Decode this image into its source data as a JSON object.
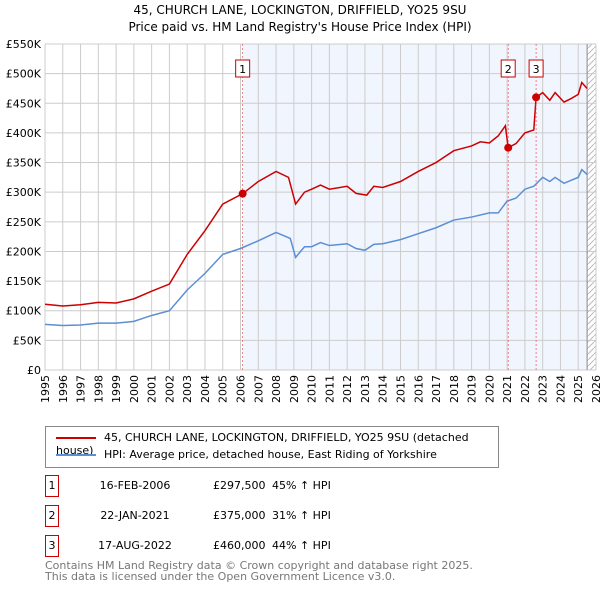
{
  "chart_data": {
    "type": "line",
    "title": "45, CHURCH LANE, LOCKINGTON, DRIFFIELD, YO25 9SU",
    "subtitle": "Price paid vs. HM Land Registry's House Price Index (HPI)",
    "xlim": [
      1995,
      2026
    ],
    "ylim": [
      0,
      550000
    ],
    "x_ticks": [
      "1995",
      "1996",
      "1997",
      "1998",
      "1999",
      "2000",
      "2001",
      "2002",
      "2003",
      "2004",
      "2005",
      "2006",
      "2007",
      "2008",
      "2009",
      "2010",
      "2011",
      "2012",
      "2013",
      "2014",
      "2015",
      "2016",
      "2017",
      "2018",
      "2019",
      "2020",
      "2021",
      "2022",
      "2023",
      "2024",
      "2025",
      "2026"
    ],
    "y_ticks": [
      {
        "v": 0,
        "label": "£0"
      },
      {
        "v": 50000,
        "label": "£50K"
      },
      {
        "v": 100000,
        "label": "£100K"
      },
      {
        "v": 150000,
        "label": "£150K"
      },
      {
        "v": 200000,
        "label": "£200K"
      },
      {
        "v": 250000,
        "label": "£250K"
      },
      {
        "v": 300000,
        "label": "£300K"
      },
      {
        "v": 350000,
        "label": "£350K"
      },
      {
        "v": 400000,
        "label": "£400K"
      },
      {
        "v": 450000,
        "label": "£450K"
      },
      {
        "v": 500000,
        "label": "£500K"
      },
      {
        "v": 550000,
        "label": "£550K"
      }
    ],
    "grid": true,
    "shaded_range": [
      2006.12,
      2025.5
    ],
    "series": [
      {
        "name": "45, CHURCH LANE, LOCKINGTON, DRIFFIELD, YO25 9SU (detached house)",
        "color": "#cc0000",
        "x": [
          1995,
          1996,
          1997,
          1998,
          1999,
          2000,
          2001,
          2002,
          2003,
          2004,
          2005,
          2006.12,
          2007,
          2008,
          2008.7,
          2009.1,
          2009.6,
          2010,
          2010.5,
          2011,
          2012,
          2012.5,
          2013.1,
          2013.5,
          2014,
          2015,
          2016,
          2017,
          2017.5,
          2018,
          2019,
          2019.5,
          2020,
          2020.5,
          2020.9,
          2021.06,
          2021.5,
          2022,
          2022.5,
          2022.63,
          2023,
          2023.4,
          2023.7,
          2024.2,
          2024.6,
          2025,
          2025.2,
          2025.5
        ],
        "y": [
          111000,
          108000,
          110000,
          114000,
          113000,
          120000,
          133000,
          145000,
          195000,
          235000,
          280000,
          297500,
          318000,
          335000,
          325000,
          280000,
          300000,
          305000,
          312000,
          305000,
          310000,
          298000,
          295000,
          310000,
          308000,
          318000,
          335000,
          350000,
          360000,
          370000,
          378000,
          385000,
          383000,
          395000,
          412000,
          375000,
          382000,
          400000,
          405000,
          460000,
          468000,
          455000,
          468000,
          452000,
          458000,
          465000,
          485000,
          475000
        ]
      },
      {
        "name": "HPI: Average price, detached house, East Riding of Yorkshire",
        "color": "#5b8fd4",
        "x": [
          1995,
          1996,
          1997,
          1998,
          1999,
          2000,
          2001,
          2002,
          2003,
          2004,
          2005,
          2006,
          2007,
          2008,
          2008.8,
          2009.1,
          2009.6,
          2010,
          2010.5,
          2011,
          2012,
          2012.5,
          2013,
          2013.5,
          2014,
          2015,
          2016,
          2017,
          2018,
          2019,
          2020,
          2020.5,
          2021,
          2021.5,
          2022,
          2022.5,
          2023,
          2023.4,
          2023.7,
          2024.2,
          2024.6,
          2025,
          2025.2,
          2025.5
        ],
        "y": [
          77000,
          75000,
          76000,
          79000,
          79000,
          82000,
          92000,
          100000,
          135000,
          163000,
          195000,
          205000,
          218000,
          232000,
          222000,
          190000,
          208000,
          208000,
          215000,
          210000,
          213000,
          205000,
          202000,
          212000,
          213000,
          220000,
          230000,
          240000,
          253000,
          258000,
          265000,
          265000,
          285000,
          290000,
          305000,
          310000,
          325000,
          318000,
          325000,
          315000,
          320000,
          325000,
          338000,
          330000
        ]
      }
    ],
    "sales": [
      {
        "id": "1",
        "x": 2006.12,
        "y": 297500,
        "date": "16-FEB-2006",
        "price": "£297,500",
        "hpi": "45% ↑ HPI"
      },
      {
        "id": "2",
        "x": 2021.06,
        "y": 375000,
        "date": "22-JAN-2021",
        "price": "£375,000",
        "hpi": "31% ↑ HPI"
      },
      {
        "id": "3",
        "x": 2022.63,
        "y": 460000,
        "date": "17-AUG-2022",
        "price": "£460,000",
        "hpi": "44% ↑ HPI"
      }
    ]
  },
  "footer": {
    "line1": "Contains HM Land Registry data © Crown copyright and database right 2025.",
    "line2": "This data is licensed under the Open Government Licence v3.0."
  }
}
